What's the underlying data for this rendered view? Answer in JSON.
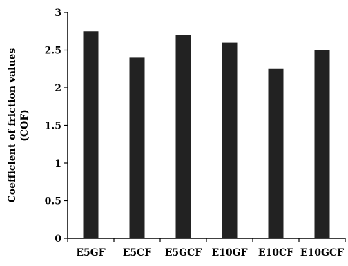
{
  "chart_data": {
    "type": "bar",
    "title": "",
    "xlabel": "",
    "ylabel": [
      "Coefficient of friction values",
      "(COF)"
    ],
    "categories": [
      "E5GF",
      "E5CF",
      "E5GCF",
      "E10GF",
      "E10CF",
      "E10GCF"
    ],
    "values": [
      2.75,
      2.4,
      2.7,
      2.6,
      2.25,
      2.5
    ],
    "ylim": [
      0,
      3
    ],
    "yticks": [
      "0",
      "0.5",
      "1",
      "1.5",
      "2",
      "2.5",
      "3"
    ],
    "grid": false,
    "legend": "none",
    "bar_color": "#222222",
    "axis_color": "#000000"
  }
}
